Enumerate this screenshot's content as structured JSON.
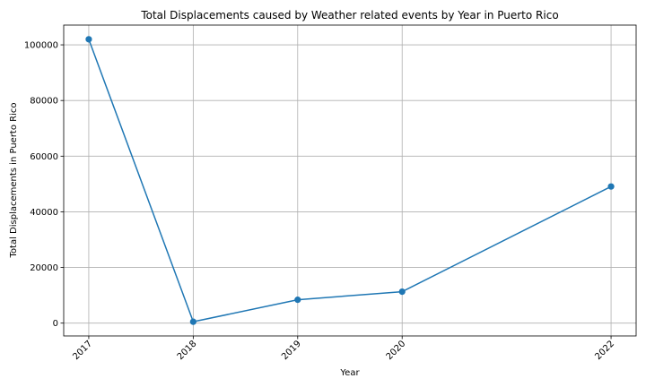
{
  "chart_data": {
    "type": "line",
    "title": "Total Displacements caused by Weather related events by Year in Puerto Rico",
    "xlabel": "Year",
    "ylabel": "Total Displacements in Puerto Rico",
    "x": [
      2017,
      2018,
      2019,
      2020,
      2022
    ],
    "series": [
      {
        "name": "Total Displacements",
        "values": [
          102000,
          500,
          8400,
          11300,
          49100
        ],
        "color": "#1f77b4"
      }
    ],
    "x_tick_labels": [
      "2017",
      "2018",
      "2019",
      "2020",
      "2022"
    ],
    "y_ticks": [
      0,
      20000,
      40000,
      60000,
      80000,
      100000
    ],
    "y_tick_labels": [
      "0",
      "20000",
      "40000",
      "60000",
      "80000",
      "100000"
    ],
    "xlim": [
      2016.76,
      2022.24
    ],
    "ylim": [
      -4600,
      107100
    ],
    "grid": true,
    "legend": "none"
  }
}
